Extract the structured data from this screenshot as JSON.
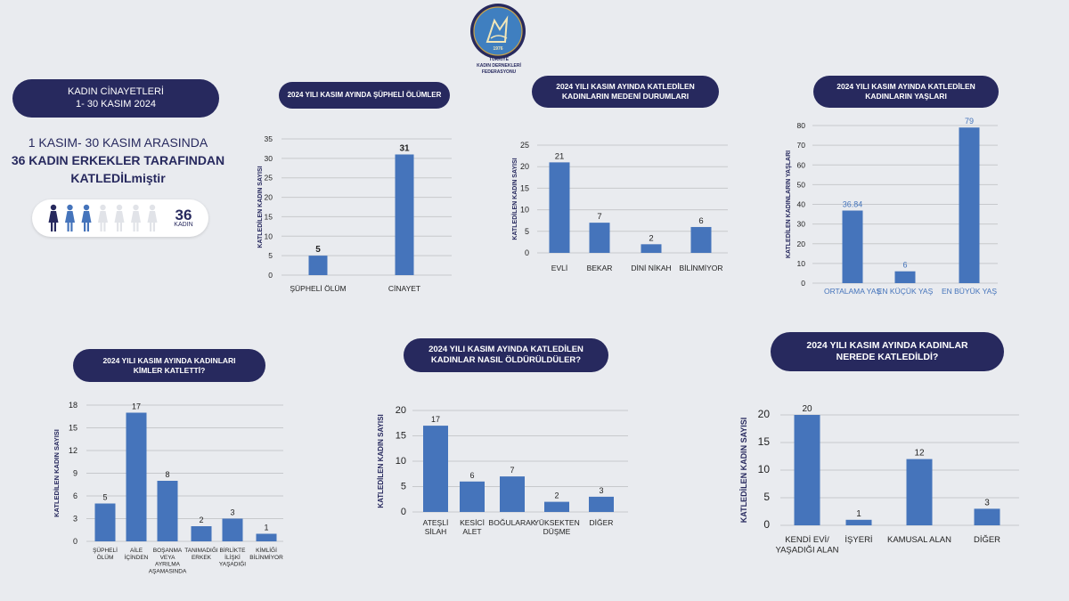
{
  "org": {
    "name_lines": [
      "TÜRKİYE",
      "KADIN DERNEKLERİ",
      "FEDERASYONU"
    ],
    "logo_year": "1976"
  },
  "intro": {
    "title_lines": [
      "KADIN CİNAYETLERİ",
      "1- 30 KASIM 2024"
    ],
    "headline_line1": "1 KASIM- 30 KASIM ARASINDA",
    "headline_line2": "36 KADIN ERKEKLER TARAFINDAN",
    "headline_line3": "KATLEDİLmiştir",
    "count": "36",
    "count_label": "KADIN"
  },
  "colors": {
    "bar": "#4574bb",
    "navy": "#27295e",
    "grid": "#c7c9cc"
  },
  "chart_data": [
    {
      "type": "bar",
      "title": "2024 YILI KASIM AYINDA ŞÜPHELİ ÖLÜMLER",
      "categories": [
        [
          "ŞÜPHELİ ÖLÜM"
        ],
        [
          "CİNAYET"
        ]
      ],
      "values": [
        5,
        31
      ],
      "ylabel": "KATLEDİLEN KADIN SAYISI",
      "yticks": [
        0,
        5,
        10,
        15,
        20,
        25,
        30,
        35
      ],
      "ylim": [
        0,
        35
      ]
    },
    {
      "type": "bar",
      "title": "2024 YILI KASIM AYINDA KATLEDİLEN KADINLARIN MEDENİ DURUMLARI",
      "categories": [
        [
          "EVLİ"
        ],
        [
          "BEKAR"
        ],
        [
          "DİNİ NİKAH"
        ],
        [
          "BİLİNMİYOR"
        ]
      ],
      "values": [
        21,
        7,
        2,
        6
      ],
      "ylabel": "KATLEDİLEN KADIN SAYISI",
      "yticks": [
        0,
        5,
        10,
        15,
        20,
        25
      ],
      "ylim": [
        0,
        25
      ]
    },
    {
      "type": "bar",
      "title": "2024 YILI KASIM AYINDA KATLEDİLEN KADINLARIN YAŞLARI",
      "categories": [
        [
          "ORTALAMA YAŞ"
        ],
        [
          "EN KÜÇÜK YAŞ"
        ],
        [
          "EN BÜYÜK YAŞ"
        ]
      ],
      "values": [
        36.84,
        6,
        79
      ],
      "ylabel": "KATLEDİLEN KADINLARIN YAŞLARI",
      "yticks": [
        0,
        10,
        20,
        30,
        40,
        50,
        60,
        70,
        80
      ],
      "ylim": [
        0,
        80
      ]
    },
    {
      "type": "bar",
      "title": "2024 YILI KASIM AYINDA KADINLARI KİMLER KATLETTİ?",
      "categories": [
        [
          "ŞÜPHELİ",
          "ÖLÜM"
        ],
        [
          "AİLE",
          "İÇİNDEN"
        ],
        [
          "BOŞANMA",
          "VEYA",
          "AYRILMA",
          "AŞAMASINDA"
        ],
        [
          "TANIMADIĞI",
          "ERKEK"
        ],
        [
          "BİRLİKTE",
          "İLİŞKİ",
          "YAŞADIĞI"
        ],
        [
          "KİMLİĞİ",
          "BİLİNMİYOR"
        ]
      ],
      "values": [
        5,
        17,
        8,
        2,
        3,
        1
      ],
      "ylabel": "KATLEDİLEN KADIN SAYISI",
      "yticks": [
        0,
        3,
        6,
        9,
        12,
        15,
        18
      ],
      "ylim": [
        0,
        18
      ]
    },
    {
      "type": "bar",
      "title": "2024 YILI KASIM AYINDA KATLEDİLEN KADINLAR NASIL ÖLDÜRÜLDÜLER?",
      "categories": [
        [
          "ATEŞLİ",
          "SİLAH"
        ],
        [
          "KESİCİ",
          "ALET"
        ],
        [
          "BOĞULARAK"
        ],
        [
          "YÜKSEKTEN",
          "DÜŞME"
        ],
        [
          "DİĞER"
        ]
      ],
      "values": [
        17,
        6,
        7,
        2,
        3
      ],
      "ylabel": "KATLEDİLEN KADIN SAYISI",
      "yticks": [
        0,
        5,
        10,
        15,
        20
      ],
      "ylim": [
        0,
        20
      ]
    },
    {
      "type": "bar",
      "title": "2024 YILI KASIM AYINDA KADINLAR NEREDE KATLEDİLDİ?",
      "categories": [
        [
          "KENDİ EVİ/",
          "YAŞADIĞI ALAN"
        ],
        [
          "İŞYERİ"
        ],
        [
          "KAMUSAL ALAN"
        ],
        [
          "DİĞER"
        ]
      ],
      "values": [
        20,
        1,
        12,
        3
      ],
      "ylabel": "KATLEDİLEN KADIN SAYISI",
      "yticks": [
        0,
        5,
        10,
        15,
        20
      ],
      "ylim": [
        0,
        20
      ]
    }
  ]
}
